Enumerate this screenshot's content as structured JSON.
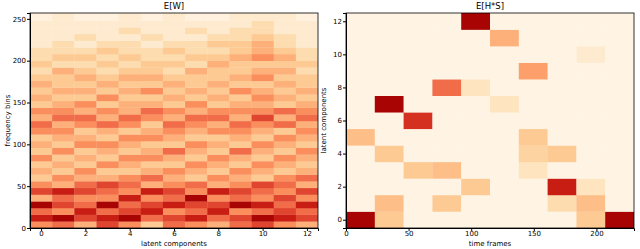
{
  "chart_data": [
    {
      "type": "heatmap",
      "title": "E[W]",
      "xlabel": "latent components",
      "ylabel": "frequency bins",
      "color": "OrRd",
      "zlim": [
        0,
        1
      ],
      "xlim": [
        -0.5,
        12.5
      ],
      "ylim": [
        0,
        257
      ],
      "xticks": [
        0,
        2,
        4,
        6,
        8,
        10,
        12
      ],
      "yticks": [
        0,
        50,
        100,
        150,
        200,
        250
      ],
      "x_edges": [
        -0.5,
        0.5,
        1.5,
        2.5,
        3.5,
        4.5,
        5.5,
        6.5,
        7.5,
        8.5,
        9.5,
        10.5,
        11.5,
        12.5
      ],
      "y_edges": [
        0,
        8,
        16,
        24,
        32,
        40,
        48,
        56,
        64,
        72,
        80,
        88,
        96,
        104,
        112,
        120,
        128,
        136,
        144,
        152,
        160,
        168,
        176,
        184,
        192,
        200,
        208,
        216,
        224,
        232,
        240,
        248,
        257
      ],
      "cells": [
        [
          0.5,
          0.6,
          0.4,
          0.7,
          0.5,
          0.3,
          0.6,
          0.5,
          0.4,
          0.6,
          0.7,
          0.5,
          0.4
        ],
        [
          0.8,
          0.9,
          0.7,
          0.8,
          0.9,
          0.6,
          0.7,
          0.8,
          0.6,
          0.7,
          0.9,
          0.8,
          0.7
        ],
        [
          0.6,
          0.5,
          0.8,
          0.6,
          0.7,
          0.8,
          0.5,
          0.6,
          0.8,
          0.5,
          0.6,
          0.7,
          0.6
        ],
        [
          0.9,
          0.7,
          0.6,
          0.9,
          0.6,
          0.7,
          0.8,
          0.7,
          0.7,
          0.9,
          0.8,
          0.6,
          0.8
        ],
        [
          0.4,
          0.6,
          0.5,
          0.5,
          0.8,
          0.5,
          0.6,
          0.9,
          0.5,
          0.6,
          0.5,
          0.7,
          0.5
        ],
        [
          0.7,
          0.8,
          0.7,
          0.6,
          0.5,
          0.8,
          0.7,
          0.5,
          0.8,
          0.7,
          0.6,
          0.5,
          0.7
        ],
        [
          0.5,
          0.4,
          0.6,
          0.7,
          0.6,
          0.4,
          0.5,
          0.6,
          0.4,
          0.5,
          0.7,
          0.6,
          0.4
        ],
        [
          0.3,
          0.5,
          0.4,
          0.4,
          0.5,
          0.6,
          0.4,
          0.3,
          0.5,
          0.4,
          0.3,
          0.5,
          0.6
        ],
        [
          0.4,
          0.3,
          0.5,
          0.3,
          0.3,
          0.4,
          0.5,
          0.4,
          0.3,
          0.5,
          0.4,
          0.3,
          0.4
        ],
        [
          0.3,
          0.4,
          0.3,
          0.5,
          0.4,
          0.3,
          0.3,
          0.5,
          0.4,
          0.3,
          0.5,
          0.4,
          0.3
        ],
        [
          0.5,
          0.3,
          0.4,
          0.3,
          0.5,
          0.5,
          0.4,
          0.3,
          0.5,
          0.4,
          0.3,
          0.5,
          0.4
        ],
        [
          0.3,
          0.5,
          0.3,
          0.4,
          0.3,
          0.4,
          0.6,
          0.4,
          0.3,
          0.6,
          0.4,
          0.3,
          0.5
        ],
        [
          0.4,
          0.3,
          0.5,
          0.5,
          0.4,
          0.3,
          0.3,
          0.5,
          0.4,
          0.3,
          0.5,
          0.4,
          0.3
        ],
        [
          0.3,
          0.4,
          0.4,
          0.3,
          0.5,
          0.5,
          0.4,
          0.3,
          0.3,
          0.4,
          0.3,
          0.5,
          0.4
        ],
        [
          0.5,
          0.5,
          0.3,
          0.4,
          0.3,
          0.4,
          0.5,
          0.4,
          0.5,
          0.5,
          0.4,
          0.3,
          0.5
        ],
        [
          0.6,
          0.4,
          0.5,
          0.6,
          0.5,
          0.3,
          0.6,
          0.5,
          0.4,
          0.6,
          0.5,
          0.6,
          0.4
        ],
        [
          0.4,
          0.6,
          0.6,
          0.4,
          0.6,
          0.5,
          0.4,
          0.6,
          0.6,
          0.4,
          0.7,
          0.4,
          0.6
        ],
        [
          0.5,
          0.5,
          0.4,
          0.5,
          0.4,
          0.6,
          0.5,
          0.4,
          0.5,
          0.5,
          0.5,
          0.6,
          0.5
        ],
        [
          0.3,
          0.4,
          0.5,
          0.3,
          0.4,
          0.4,
          0.3,
          0.5,
          0.3,
          0.4,
          0.4,
          0.3,
          0.4
        ],
        [
          0.4,
          0.3,
          0.3,
          0.5,
          0.3,
          0.3,
          0.4,
          0.3,
          0.4,
          0.3,
          0.5,
          0.4,
          0.3
        ],
        [
          0.3,
          0.4,
          0.4,
          0.3,
          0.4,
          0.5,
          0.3,
          0.4,
          0.3,
          0.5,
          0.4,
          0.3,
          0.4
        ],
        [
          0.4,
          0.3,
          0.3,
          0.4,
          0.3,
          0.3,
          0.4,
          0.3,
          0.4,
          0.3,
          0.3,
          0.4,
          0.3
        ],
        [
          0.3,
          0.3,
          0.4,
          0.3,
          0.4,
          0.4,
          0.3,
          0.3,
          0.3,
          0.4,
          0.5,
          0.3,
          0.3
        ],
        [
          0.2,
          0.4,
          0.3,
          0.2,
          0.3,
          0.3,
          0.2,
          0.4,
          0.3,
          0.3,
          0.4,
          0.4,
          0.2
        ],
        [
          0.3,
          0.2,
          0.2,
          0.3,
          0.2,
          0.3,
          0.3,
          0.2,
          0.4,
          0.3,
          0.3,
          0.3,
          0.3
        ],
        [
          0.2,
          0.3,
          0.3,
          0.2,
          0.3,
          0.2,
          0.2,
          0.3,
          0.3,
          0.4,
          0.5,
          0.4,
          0.2
        ],
        [
          0.2,
          0.2,
          0.2,
          0.3,
          0.2,
          0.2,
          0.3,
          0.2,
          0.2,
          0.3,
          0.4,
          0.3,
          0.2
        ],
        [
          0.1,
          0.2,
          0.1,
          0.2,
          0.2,
          0.1,
          0.2,
          0.2,
          0.3,
          0.3,
          0.4,
          0.2,
          0.1
        ],
        [
          0.1,
          0.1,
          0.2,
          0.1,
          0.1,
          0.2,
          0.1,
          0.1,
          0.2,
          0.2,
          0.3,
          0.2,
          0.1
        ],
        [
          0.1,
          0.1,
          0.1,
          0.1,
          0.2,
          0.1,
          0.1,
          0.2,
          0.1,
          0.2,
          0.2,
          0.1,
          0.1
        ],
        [
          0.1,
          0.1,
          0.1,
          0.1,
          0.1,
          0.1,
          0.1,
          0.1,
          0.1,
          0.1,
          0.2,
          0.1,
          0.1
        ],
        [
          0.05,
          0.1,
          0.05,
          0.05,
          0.1,
          0.05,
          0.1,
          0.05,
          0.05,
          0.1,
          0.1,
          0.1,
          0.05
        ]
      ]
    },
    {
      "type": "heatmap",
      "title": "E[H*S]",
      "xlabel": "time frames",
      "ylabel": "latent components",
      "color": "OrRd",
      "zlim": [
        0,
        1
      ],
      "xlim": [
        0,
        230
      ],
      "ylim": [
        -0.5,
        12.5
      ],
      "xticks": [
        0,
        50,
        100,
        150,
        200
      ],
      "yticks": [
        0,
        2,
        4,
        6,
        8,
        10,
        12
      ],
      "x_edges": [
        0,
        23,
        46,
        69,
        92,
        115,
        138,
        161,
        184,
        207,
        230
      ],
      "y_edges": [
        -0.5,
        0.5,
        1.5,
        2.5,
        3.5,
        4.5,
        5.5,
        6.5,
        7.5,
        8.5,
        9.5,
        10.5,
        11.5,
        12.5
      ],
      "cells": [
        [
          0.9,
          0.3,
          0.03,
          0.03,
          0.03,
          0.03,
          0.03,
          0.03,
          0.3,
          0.9
        ],
        [
          0.03,
          0.35,
          0.03,
          0.3,
          0.03,
          0.03,
          0.03,
          0.2,
          0.35,
          0.03
        ],
        [
          0.03,
          0.03,
          0.03,
          0.03,
          0.3,
          0.03,
          0.03,
          0.8,
          0.15,
          0.03
        ],
        [
          0.03,
          0.03,
          0.3,
          0.35,
          0.03,
          0.03,
          0.15,
          0.03,
          0.03,
          0.03
        ],
        [
          0.03,
          0.3,
          0.03,
          0.03,
          0.03,
          0.03,
          0.25,
          0.3,
          0.03,
          0.03
        ],
        [
          0.35,
          0.03,
          0.03,
          0.03,
          0.03,
          0.03,
          0.3,
          0.03,
          0.03,
          0.03
        ],
        [
          0.03,
          0.03,
          0.75,
          0.03,
          0.03,
          0.03,
          0.03,
          0.03,
          0.03,
          0.03
        ],
        [
          0.03,
          0.9,
          0.03,
          0.03,
          0.03,
          0.15,
          0.03,
          0.03,
          0.03,
          0.03
        ],
        [
          0.03,
          0.03,
          0.03,
          0.6,
          0.15,
          0.03,
          0.03,
          0.03,
          0.03,
          0.03
        ],
        [
          0.03,
          0.03,
          0.03,
          0.03,
          0.03,
          0.03,
          0.45,
          0.03,
          0.03,
          0.03
        ],
        [
          0.03,
          0.03,
          0.03,
          0.03,
          0.03,
          0.03,
          0.03,
          0.03,
          0.1,
          0.03
        ],
        [
          0.03,
          0.03,
          0.03,
          0.03,
          0.03,
          0.4,
          0.03,
          0.03,
          0.03,
          0.03
        ],
        [
          0.03,
          0.03,
          0.03,
          0.03,
          0.9,
          0.03,
          0.03,
          0.03,
          0.03,
          0.03
        ]
      ]
    }
  ]
}
